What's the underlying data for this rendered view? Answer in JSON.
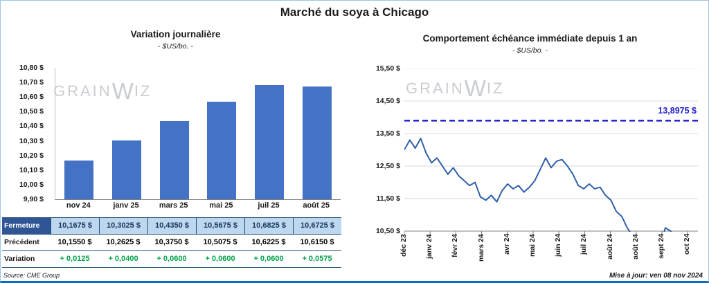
{
  "header": {
    "title": "Marché du soya à Chicago"
  },
  "watermark": {
    "left": "Grain",
    "mark": "W",
    "right": "iz"
  },
  "footer": {
    "source": "Source: CME Group",
    "updated": "Mise à jour: ven 08 nov 2024"
  },
  "colors": {
    "bar": "#4472C4",
    "line": "#2E5FA8",
    "reference": "#2020CC",
    "table_header_bg": "#2F5597",
    "table_close_bg": "#BDD7EE",
    "table_close_text": "#17375E",
    "variation_green": "#00A14B",
    "navy_border": "#1F4E79",
    "bottom_line": "#0070C0",
    "grid": "#D9D9D9",
    "watermark_gray": "#C9CDD2"
  },
  "table": {
    "rows": [
      {
        "label": "Fermeture",
        "style": "close",
        "values": [
          "10,1675  $",
          "10,3025  $",
          "10,4350  $",
          "10,5675  $",
          "10,6825  $",
          "10,6725  $"
        ]
      },
      {
        "label": "Précédent",
        "style": "prev",
        "values": [
          "10,1550  $",
          "10,2625  $",
          "10,3750  $",
          "10,5075  $",
          "10,6225  $",
          "10,6150  $"
        ]
      },
      {
        "label": "Variation",
        "style": "var",
        "values": [
          "+ 0,0125",
          "+ 0,0400",
          "+ 0,0600",
          "+ 0,0600",
          "+ 0,0600",
          "+ 0,0575"
        ]
      }
    ]
  },
  "chart_data": [
    {
      "type": "bar",
      "title": "Variation  journalière",
      "subtitle": "- $US/bo. -",
      "categories": [
        "nov 24",
        "janv 25",
        "mars 25",
        "mai 25",
        "juil 25",
        "août 25"
      ],
      "values": [
        10.1675,
        10.3025,
        10.435,
        10.5675,
        10.6825,
        10.6725
      ],
      "ylim": [
        9.9,
        10.8
      ],
      "ytick_step": 0.1,
      "ytick_labels": [
        "10,80 $",
        "10,70 $",
        "10,60 $",
        "10,50 $",
        "10,40 $",
        "10,30 $",
        "10,20 $",
        "10,10 $",
        "10,00 $",
        "9,90 $"
      ],
      "grid": false,
      "legend": "none"
    },
    {
      "type": "line",
      "title": "Comportement  échéance  immédiate  depuis  1 an",
      "subtitle": "- $US/bo. -",
      "x_labels": [
        "déc 23",
        "janv 24",
        "févr 24",
        "mars 24",
        "avr 24",
        "mai 24",
        "juin 24",
        "juil 24",
        "août 24",
        "août 24",
        "sept 24",
        "oct 24"
      ],
      "values": [
        13.0,
        13.3,
        13.05,
        13.35,
        12.9,
        12.6,
        12.75,
        12.5,
        12.25,
        12.45,
        12.2,
        12.05,
        11.9,
        12.0,
        11.55,
        11.45,
        11.6,
        11.4,
        11.75,
        11.95,
        11.8,
        11.9,
        11.7,
        11.85,
        12.05,
        12.4,
        12.75,
        12.45,
        12.65,
        12.7,
        12.5,
        12.25,
        11.9,
        11.8,
        11.95,
        11.8,
        11.85,
        11.6,
        11.45,
        11.1,
        10.95,
        10.6,
        10.35,
        10.1,
        9.95,
        10.2,
        9.9,
        10.0,
        10.6,
        10.5,
        10.0,
        9.9,
        9.95,
        10.05,
        9.9
      ],
      "ylim": [
        10.5,
        15.5
      ],
      "ytick_labels": [
        "15,50 $",
        "14,50 $",
        "13,50 $",
        "12,50 $",
        "11,50 $",
        "10,50 $"
      ],
      "reference_line": {
        "value": 13.8975,
        "label": "13,8975 $"
      },
      "grid": true,
      "legend": "none"
    }
  ]
}
